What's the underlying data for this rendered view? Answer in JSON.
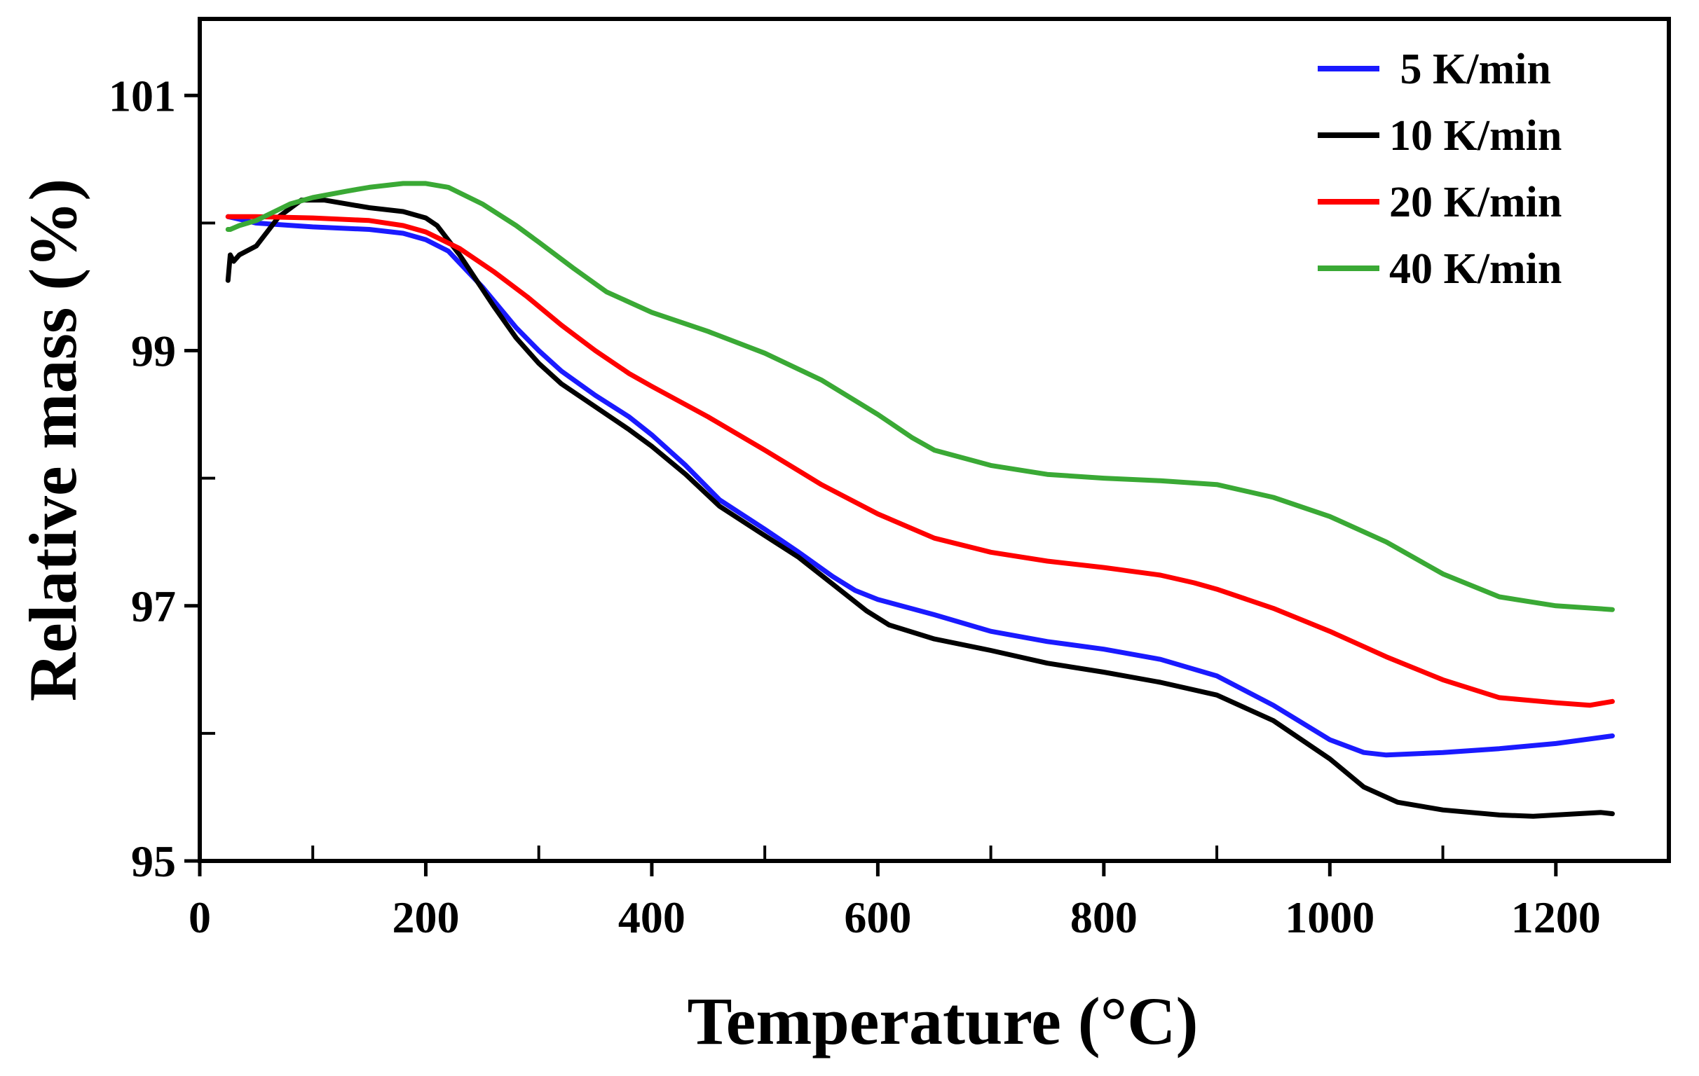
{
  "chart_data": {
    "type": "line",
    "title": "",
    "xlabel": "Temperature (°C)",
    "ylabel": "Relative mass (%)",
    "xlim": [
      0,
      1300
    ],
    "ylim": [
      95,
      101.6
    ],
    "x_ticks_major": [
      0,
      200,
      400,
      600,
      800,
      1000,
      1200
    ],
    "x_ticks_minor": [
      100,
      300,
      500,
      700,
      900,
      1100
    ],
    "y_ticks_major": [
      95,
      97,
      99,
      101
    ],
    "y_ticks_minor": [
      96,
      98,
      100
    ],
    "x_tick_labels": [
      "0",
      "200",
      "400",
      "600",
      "800",
      "1000",
      "1200"
    ],
    "y_tick_labels": [
      "95",
      "97",
      "99",
      "101"
    ],
    "grid": false,
    "legend_position": "top-right",
    "series": [
      {
        "name": "5 K/min",
        "legend_label": " 5 K/min",
        "color": "#1a1aff",
        "points": [
          [
            25,
            100.05
          ],
          [
            30,
            100.04
          ],
          [
            50,
            100.0
          ],
          [
            100,
            99.97
          ],
          [
            150,
            99.95
          ],
          [
            180,
            99.92
          ],
          [
            200,
            99.87
          ],
          [
            220,
            99.78
          ],
          [
            250,
            99.5
          ],
          [
            280,
            99.18
          ],
          [
            300,
            99.0
          ],
          [
            320,
            98.84
          ],
          [
            350,
            98.65
          ],
          [
            380,
            98.48
          ],
          [
            400,
            98.34
          ],
          [
            430,
            98.1
          ],
          [
            460,
            97.83
          ],
          [
            500,
            97.6
          ],
          [
            530,
            97.42
          ],
          [
            560,
            97.23
          ],
          [
            580,
            97.12
          ],
          [
            600,
            97.05
          ],
          [
            650,
            96.93
          ],
          [
            700,
            96.8
          ],
          [
            750,
            96.72
          ],
          [
            800,
            96.66
          ],
          [
            850,
            96.58
          ],
          [
            900,
            96.45
          ],
          [
            950,
            96.22
          ],
          [
            1000,
            95.95
          ],
          [
            1030,
            95.85
          ],
          [
            1050,
            95.83
          ],
          [
            1100,
            95.85
          ],
          [
            1150,
            95.88
          ],
          [
            1200,
            95.92
          ],
          [
            1250,
            95.98
          ]
        ]
      },
      {
        "name": "10 K/min",
        "legend_label": "10 K/min",
        "color": "#000000",
        "points": [
          [
            25,
            99.55
          ],
          [
            27,
            99.75
          ],
          [
            30,
            99.7
          ],
          [
            35,
            99.75
          ],
          [
            50,
            99.82
          ],
          [
            70,
            100.05
          ],
          [
            90,
            100.18
          ],
          [
            110,
            100.18
          ],
          [
            130,
            100.15
          ],
          [
            150,
            100.12
          ],
          [
            180,
            100.09
          ],
          [
            200,
            100.04
          ],
          [
            210,
            99.98
          ],
          [
            230,
            99.75
          ],
          [
            260,
            99.35
          ],
          [
            280,
            99.1
          ],
          [
            300,
            98.9
          ],
          [
            320,
            98.74
          ],
          [
            350,
            98.56
          ],
          [
            380,
            98.38
          ],
          [
            400,
            98.25
          ],
          [
            430,
            98.03
          ],
          [
            460,
            97.78
          ],
          [
            500,
            97.55
          ],
          [
            530,
            97.38
          ],
          [
            560,
            97.17
          ],
          [
            590,
            96.96
          ],
          [
            610,
            96.85
          ],
          [
            650,
            96.74
          ],
          [
            700,
            96.65
          ],
          [
            750,
            96.55
          ],
          [
            800,
            96.48
          ],
          [
            850,
            96.4
          ],
          [
            900,
            96.3
          ],
          [
            950,
            96.1
          ],
          [
            1000,
            95.8
          ],
          [
            1030,
            95.58
          ],
          [
            1060,
            95.46
          ],
          [
            1100,
            95.4
          ],
          [
            1150,
            95.36
          ],
          [
            1180,
            95.35
          ],
          [
            1200,
            95.36
          ],
          [
            1240,
            95.38
          ],
          [
            1250,
            95.37
          ]
        ]
      },
      {
        "name": "20 K/min",
        "legend_label": "20 K/min",
        "color": "#ff0000",
        "points": [
          [
            25,
            100.05
          ],
          [
            50,
            100.05
          ],
          [
            100,
            100.04
          ],
          [
            150,
            100.02
          ],
          [
            180,
            99.98
          ],
          [
            200,
            99.93
          ],
          [
            230,
            99.8
          ],
          [
            260,
            99.62
          ],
          [
            290,
            99.42
          ],
          [
            320,
            99.2
          ],
          [
            350,
            99.0
          ],
          [
            380,
            98.82
          ],
          [
            400,
            98.72
          ],
          [
            450,
            98.48
          ],
          [
            500,
            98.22
          ],
          [
            550,
            97.95
          ],
          [
            600,
            97.72
          ],
          [
            650,
            97.53
          ],
          [
            700,
            97.42
          ],
          [
            750,
            97.35
          ],
          [
            800,
            97.3
          ],
          [
            850,
            97.24
          ],
          [
            880,
            97.18
          ],
          [
            900,
            97.13
          ],
          [
            950,
            96.98
          ],
          [
            1000,
            96.8
          ],
          [
            1050,
            96.6
          ],
          [
            1100,
            96.42
          ],
          [
            1150,
            96.28
          ],
          [
            1200,
            96.24
          ],
          [
            1230,
            96.22
          ],
          [
            1250,
            96.25
          ]
        ]
      },
      {
        "name": "40 K/min",
        "legend_label": "40 K/min",
        "color": "#3aa935",
        "points": [
          [
            25,
            99.95
          ],
          [
            27,
            99.95
          ],
          [
            35,
            99.98
          ],
          [
            50,
            100.02
          ],
          [
            80,
            100.15
          ],
          [
            100,
            100.2
          ],
          [
            130,
            100.25
          ],
          [
            150,
            100.28
          ],
          [
            180,
            100.31
          ],
          [
            200,
            100.31
          ],
          [
            220,
            100.28
          ],
          [
            250,
            100.15
          ],
          [
            280,
            99.98
          ],
          [
            300,
            99.85
          ],
          [
            330,
            99.65
          ],
          [
            360,
            99.46
          ],
          [
            400,
            99.3
          ],
          [
            450,
            99.15
          ],
          [
            500,
            98.98
          ],
          [
            550,
            98.77
          ],
          [
            600,
            98.5
          ],
          [
            630,
            98.32
          ],
          [
            650,
            98.22
          ],
          [
            700,
            98.1
          ],
          [
            750,
            98.03
          ],
          [
            800,
            98.0
          ],
          [
            850,
            97.98
          ],
          [
            900,
            97.95
          ],
          [
            950,
            97.85
          ],
          [
            1000,
            97.7
          ],
          [
            1050,
            97.5
          ],
          [
            1100,
            97.25
          ],
          [
            1150,
            97.07
          ],
          [
            1200,
            97.0
          ],
          [
            1250,
            96.97
          ]
        ]
      }
    ]
  }
}
